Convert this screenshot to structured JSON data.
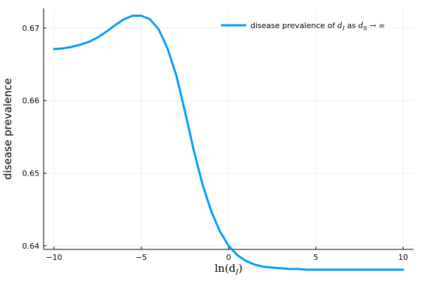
{
  "chart_data": {
    "type": "line",
    "xlabel": "ln(d",
    "xlabel_sub": "I",
    "xlabel_close": ")",
    "ylabel": "disease prevalence",
    "xlim": [
      -10.6,
      10.6
    ],
    "ylim": [
      0.6395,
      0.6727
    ],
    "xticks": [
      -10,
      -5,
      0,
      5,
      10
    ],
    "xtick_labels": [
      "−10",
      "−5",
      "0",
      "5",
      "10"
    ],
    "yticks": [
      0.64,
      0.65,
      0.66,
      0.67
    ],
    "ytick_labels": [
      "0.64",
      "0.65",
      "0.66",
      "0.67"
    ],
    "grid": true,
    "legend_position": "top-right",
    "legend": {
      "text": "disease prevalence of ",
      "d1": "d",
      "sub1": "I",
      "as": " as ",
      "d2": "d",
      "sub2": "S",
      "arrow": " → ∞"
    },
    "series": [
      {
        "color": "#009AFA",
        "x": [
          -10,
          -9.5,
          -9,
          -8.5,
          -8,
          -7.5,
          -7,
          -6.5,
          -6,
          -5.5,
          -5,
          -4.5,
          -4,
          -3.5,
          -3,
          -2.5,
          -2,
          -1.5,
          -1,
          -0.5,
          0,
          0.5,
          1,
          1.5,
          2,
          2.5,
          3,
          3.5,
          4,
          4.5,
          5,
          6,
          7,
          8,
          9,
          10
        ],
        "y": [
          0.6671,
          0.6672,
          0.6674,
          0.6677,
          0.6681,
          0.6687,
          0.6695,
          0.6704,
          0.6712,
          0.6717,
          0.6717,
          0.6712,
          0.6698,
          0.6672,
          0.6635,
          0.6585,
          0.6532,
          0.6485,
          0.6448,
          0.642,
          0.64,
          0.6387,
          0.6379,
          0.6374,
          0.6371,
          0.637,
          0.6369,
          0.6368,
          0.6368,
          0.6367,
          0.6367,
          0.6367,
          0.6367,
          0.6367,
          0.6367,
          0.6367
        ]
      }
    ]
  }
}
